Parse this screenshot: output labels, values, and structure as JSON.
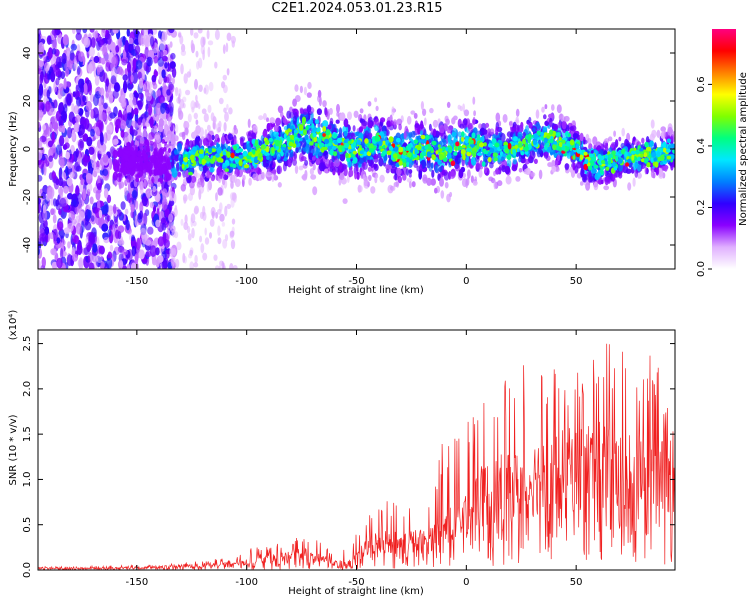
{
  "figure": {
    "title": "C2E1.2024.053.01.23.R15"
  },
  "chart_data": [
    {
      "type": "heatmap",
      "title": "C2E1.2024.053.01.23.R15",
      "xlabel": "Height of straight line (km)",
      "ylabel": "Frequency (Hz)",
      "xlim": [
        -195,
        95
      ],
      "ylim": [
        -50,
        50
      ],
      "xticks": [
        -150,
        -100,
        -50,
        0,
        50
      ],
      "yticks": [
        -40,
        -20,
        0,
        20,
        40
      ],
      "colorbar": {
        "label": "Normalized spectral amplitude",
        "range": [
          0.0,
          0.78
        ],
        "ticks": [
          0.0,
          0.2,
          0.4,
          0.6
        ],
        "colormap": [
          "#ffffff",
          "#e0b0ff",
          "#8a00ff",
          "#3000ff",
          "#0080ff",
          "#00e8ff",
          "#00ff80",
          "#80ff00",
          "#ffff00",
          "#ff8000",
          "#ff0000",
          "#ff0080"
        ]
      },
      "signal_band": {
        "x": [
          -160,
          -140,
          -120,
          -100,
          -90,
          -80,
          -75,
          -70,
          -60,
          -50,
          -40,
          -30,
          -20,
          -10,
          0,
          10,
          20,
          30,
          35,
          40,
          50,
          55,
          60,
          70,
          80,
          90,
          95
        ],
        "center_hz": [
          -5,
          -5,
          -4,
          -3,
          0,
          4,
          7,
          6,
          2,
          0,
          3,
          -2,
          0,
          -2,
          2,
          0,
          0,
          3,
          5,
          4,
          0,
          -5,
          -7,
          -4,
          -3,
          -2,
          -1
        ],
        "halfwidth_hz": [
          5,
          6,
          6,
          6,
          7,
          8,
          9,
          9,
          8,
          8,
          8,
          8,
          8,
          8,
          8,
          7,
          7,
          7,
          7,
          7,
          6,
          6,
          6,
          6,
          5,
          5,
          5
        ]
      }
    },
    {
      "type": "line",
      "xlabel": "Height of straight line (km)",
      "ylabel": "SNR (10 * v/v)",
      "y_multiplier_label": "(x10⁴)",
      "xlim": [
        -195,
        95
      ],
      "ylim": [
        0,
        2.65
      ],
      "xticks": [
        -150,
        -100,
        -50,
        0,
        50
      ],
      "yticks": [
        0.0,
        0.5,
        1.0,
        1.5,
        2.0,
        2.5
      ],
      "series": [
        {
          "color": "#f02020",
          "x": [
            -195,
            -180,
            -160,
            -140,
            -130,
            -120,
            -110,
            -100,
            -95,
            -90,
            -85,
            -80,
            -75,
            -70,
            -65,
            -60,
            -55,
            -50,
            -45,
            -40,
            -35,
            -30,
            -25,
            -20,
            -15,
            -10,
            -5,
            0,
            5,
            10,
            15,
            20,
            25,
            30,
            35,
            40,
            45,
            50,
            55,
            60,
            65,
            70,
            75,
            80,
            85,
            90,
            95
          ],
          "mean": [
            0.02,
            0.02,
            0.02,
            0.03,
            0.04,
            0.05,
            0.07,
            0.08,
            0.12,
            0.12,
            0.12,
            0.15,
            0.16,
            0.15,
            0.12,
            0.07,
            0.08,
            0.12,
            0.25,
            0.3,
            0.3,
            0.28,
            0.3,
            0.3,
            0.35,
            0.45,
            0.5,
            0.65,
            0.75,
            0.8,
            0.85,
            0.85,
            0.9,
            0.95,
            1.05,
            1.05,
            1.05,
            1.05,
            1.1,
            1.1,
            1.1,
            1.0,
            1.0,
            1.05,
            1.05,
            1.05,
            1.0
          ],
          "peak": [
            0.04,
            0.04,
            0.05,
            0.06,
            0.08,
            0.1,
            0.14,
            0.2,
            0.3,
            0.25,
            0.3,
            0.35,
            0.4,
            0.35,
            0.3,
            0.2,
            0.25,
            0.4,
            0.6,
            0.75,
            0.8,
            0.7,
            0.8,
            0.85,
            0.9,
            1.6,
            1.45,
            1.7,
            1.8,
            2.45,
            2.05,
            2.2,
            2.3,
            2.4,
            2.4,
            2.25,
            2.2,
            2.25,
            2.35,
            2.5,
            2.62,
            2.45,
            2.45,
            2.2,
            2.45,
            2.0,
            1.8
          ]
        }
      ]
    }
  ]
}
